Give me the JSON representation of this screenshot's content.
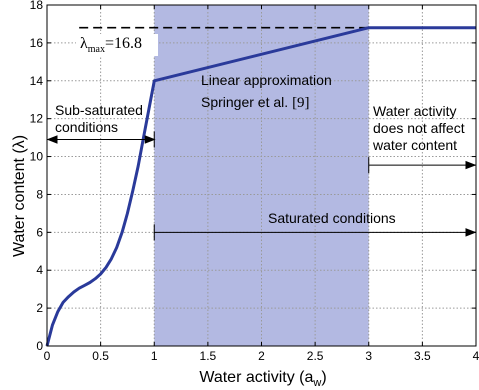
{
  "chart_data": {
    "type": "line",
    "xlabel_main": "Water activity (a",
    "xlabel_sub": "w",
    "xlabel_close": ")",
    "ylabel": "Water content (λ)",
    "xlim": [
      0,
      4
    ],
    "ylim": [
      0,
      18
    ],
    "xticks": [
      "0",
      "0.5",
      "1",
      "1.5",
      "2",
      "2.5",
      "3",
      "3.5",
      "4"
    ],
    "xtick_values": [
      0,
      0.5,
      1,
      1.5,
      2,
      2.5,
      3,
      3.5,
      4
    ],
    "yticks": [
      "0",
      "2",
      "4",
      "6",
      "8",
      "10",
      "12",
      "14",
      "16",
      "18"
    ],
    "ytick_values": [
      0,
      2,
      4,
      6,
      8,
      10,
      12,
      14,
      16,
      18
    ],
    "grid": true,
    "shaded_region": {
      "x_from": 1,
      "x_to": 3,
      "color": "#b3b9e2"
    },
    "lambda_max": {
      "value": 16.8,
      "label_symbol": "λ",
      "label_sub": "max",
      "label_value": "=16.8"
    },
    "series": [
      {
        "color": "#2a3a9a",
        "x": [
          0,
          0.05,
          0.1,
          0.15,
          0.2,
          0.25,
          0.3,
          0.35,
          0.4,
          0.45,
          0.5,
          0.55,
          0.6,
          0.65,
          0.7,
          0.75,
          0.8,
          0.85,
          0.9,
          0.95,
          1,
          3,
          4
        ],
        "y": [
          0,
          1.1,
          1.8,
          2.3,
          2.6,
          2.85,
          3.05,
          3.2,
          3.35,
          3.55,
          3.8,
          4.15,
          4.6,
          5.2,
          6.0,
          7.0,
          8.2,
          9.5,
          11.0,
          12.5,
          14.0,
          16.8,
          16.8
        ]
      }
    ],
    "annotations": {
      "linear_line1": "Linear approximation",
      "linear_line2": "Springer et al. ",
      "linear_ref": "[9]",
      "subsat_line1": "Sub-saturated",
      "subsat_line2": "conditions",
      "wa_line1": "Water activity",
      "wa_line2": "does not affect",
      "wa_line3": "water content",
      "saturated": "Saturated conditions"
    },
    "colors": {
      "curve": "#2a3a9a",
      "shade": "#b3b9e2",
      "grid": "#9a9a9a",
      "axis": "#000000"
    }
  }
}
